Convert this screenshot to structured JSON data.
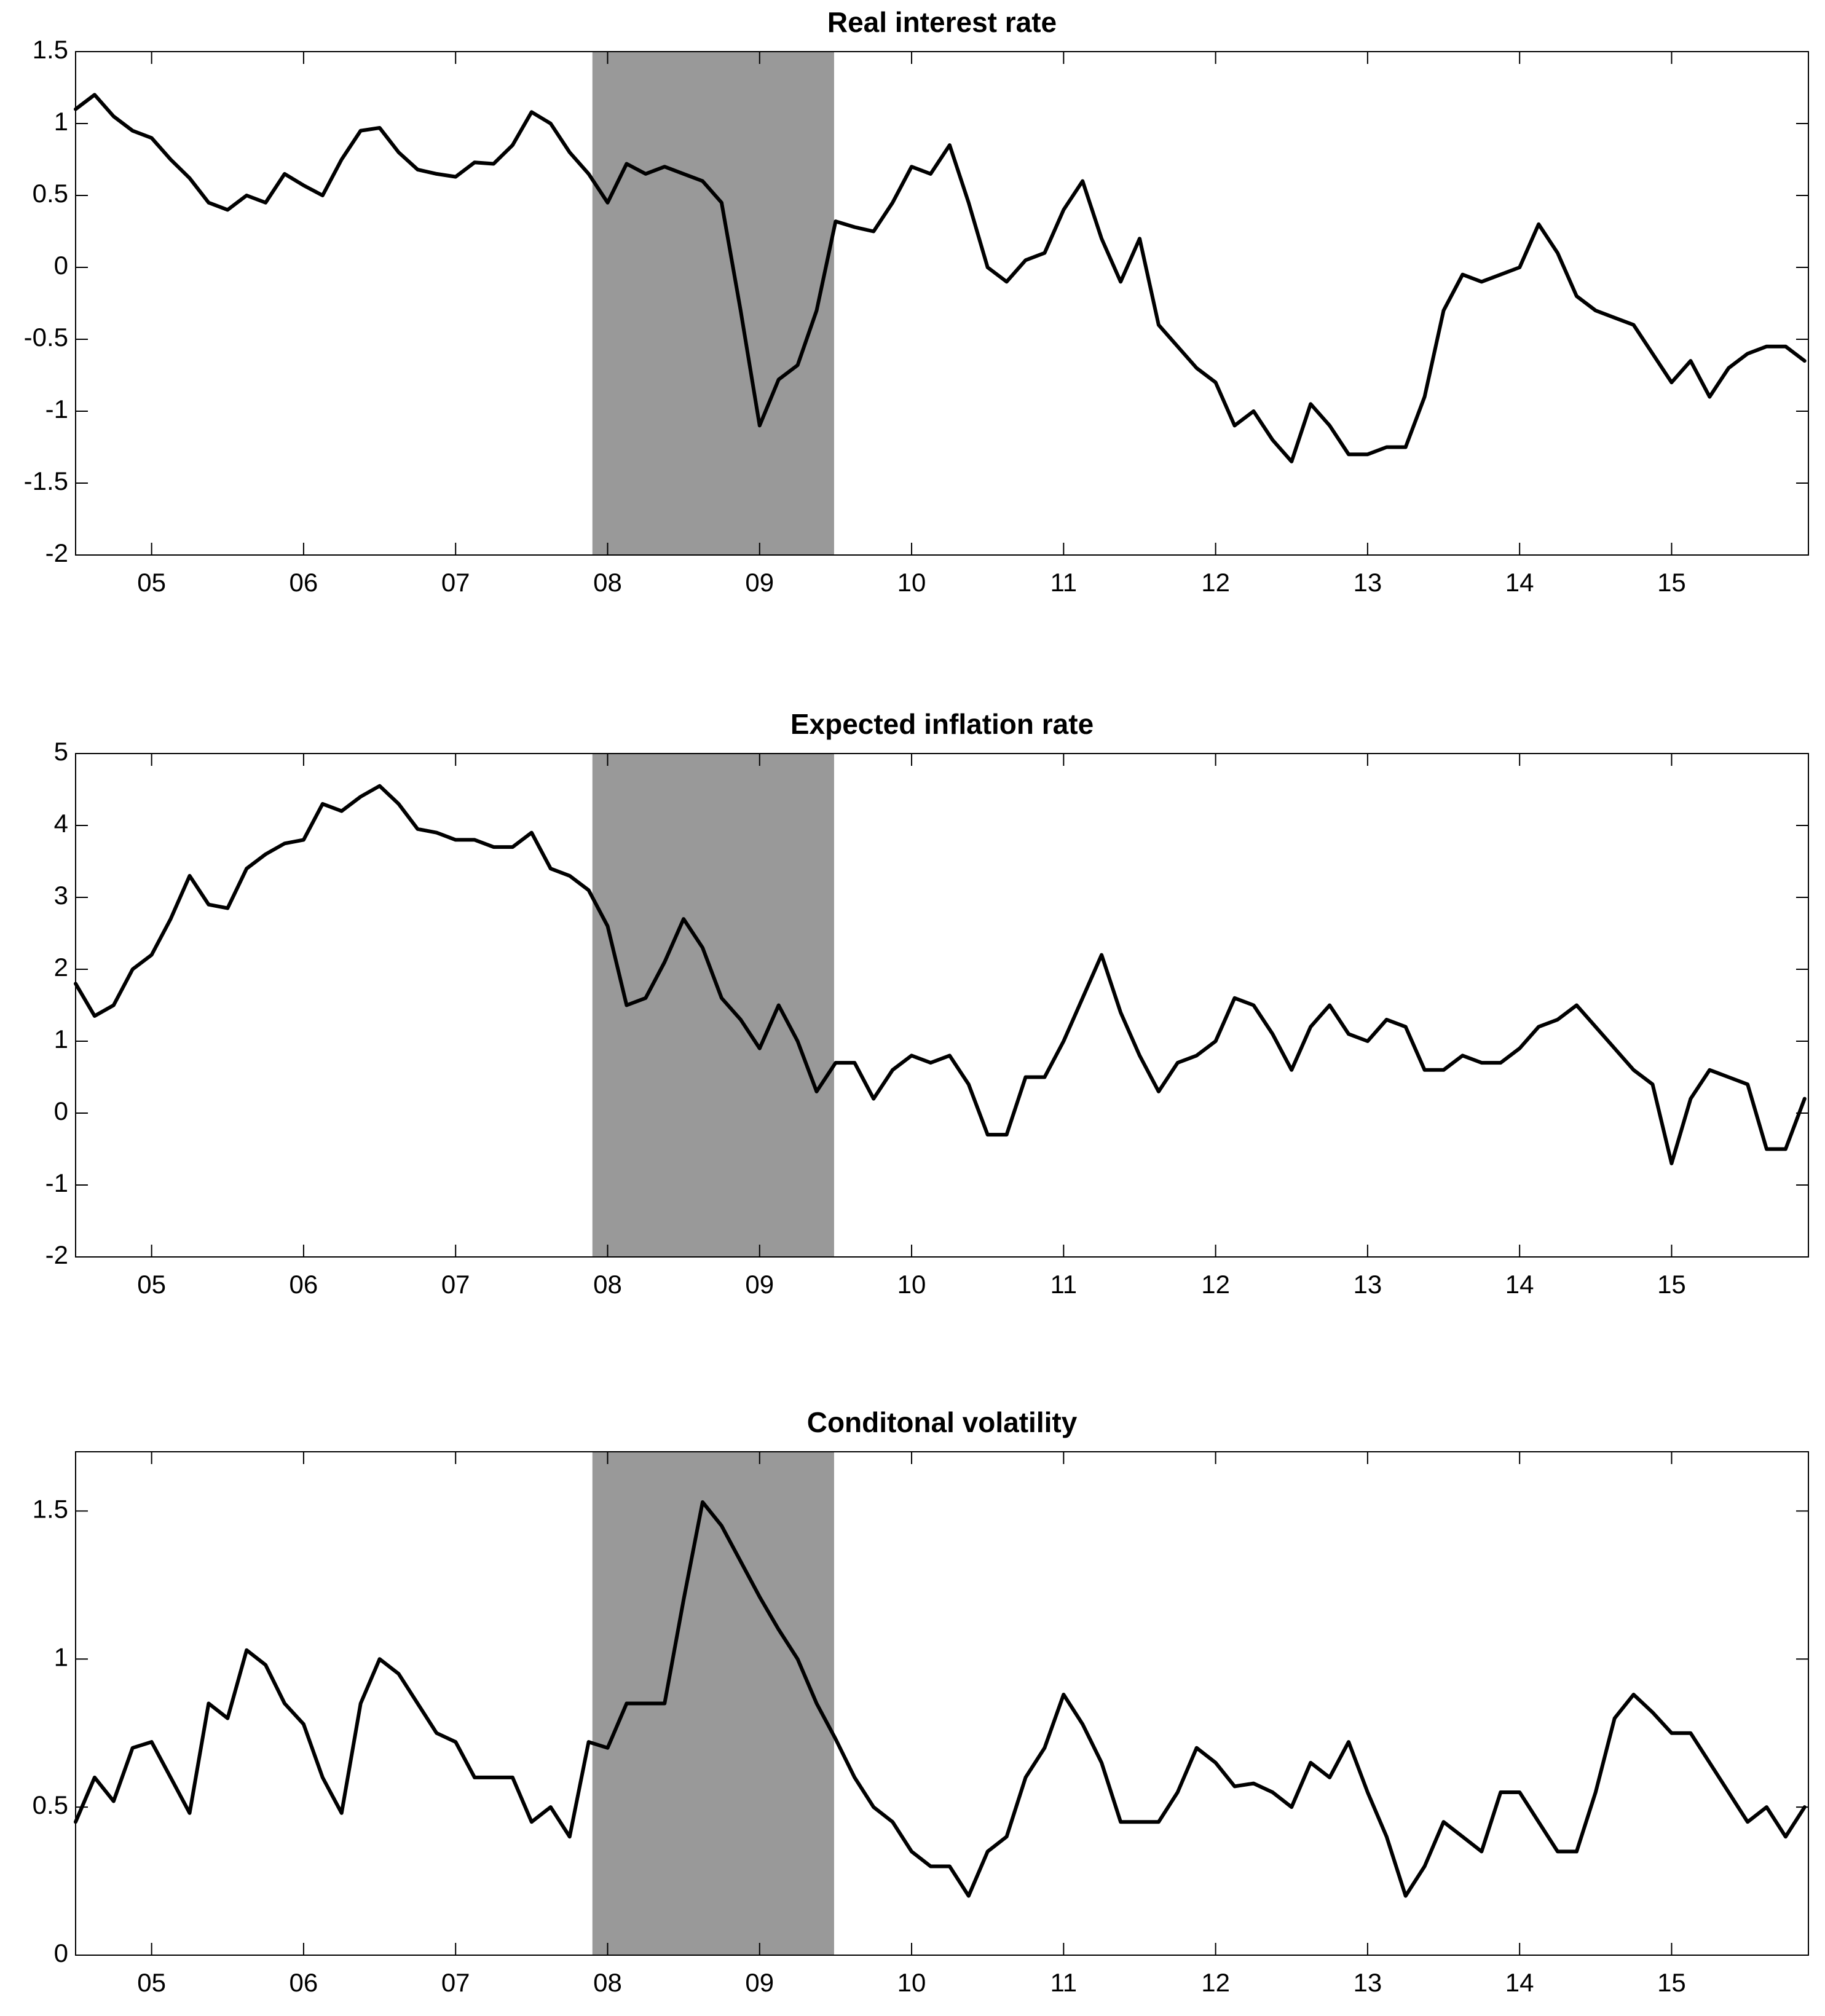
{
  "chart_data": [
    {
      "type": "line",
      "title": "Real interest rate",
      "color": "#000000",
      "shade_color": "#999999",
      "shaded_region": [
        2007.9,
        2009.49
      ],
      "xlim": [
        2004.5,
        2015.9
      ],
      "ylim": [
        -2,
        1.5
      ],
      "xticks": [
        {
          "value": 2005,
          "label": "05"
        },
        {
          "value": 2006,
          "label": "06"
        },
        {
          "value": 2007,
          "label": "07"
        },
        {
          "value": 2008,
          "label": "08"
        },
        {
          "value": 2009,
          "label": "09"
        },
        {
          "value": 2010,
          "label": "10"
        },
        {
          "value": 2011,
          "label": "11"
        },
        {
          "value": 2012,
          "label": "12"
        },
        {
          "value": 2013,
          "label": "13"
        },
        {
          "value": 2014,
          "label": "14"
        },
        {
          "value": 2015,
          "label": "15"
        }
      ],
      "yticks": [
        -2,
        -1.5,
        -1,
        -0.5,
        0,
        0.5,
        1,
        1.5
      ],
      "x": [
        2004.5,
        2004.625,
        2004.75,
        2004.875,
        2005,
        2005.125,
        2005.25,
        2005.375,
        2005.5,
        2005.625,
        2005.75,
        2005.875,
        2006,
        2006.125,
        2006.25,
        2006.375,
        2006.5,
        2006.625,
        2006.75,
        2006.875,
        2007,
        2007.125,
        2007.25,
        2007.375,
        2007.5,
        2007.625,
        2007.75,
        2007.875,
        2008,
        2008.125,
        2008.25,
        2008.375,
        2008.5,
        2008.625,
        2008.75,
        2008.875,
        2009,
        2009.125,
        2009.25,
        2009.375,
        2009.5,
        2009.625,
        2009.75,
        2009.875,
        2010,
        2010.125,
        2010.25,
        2010.375,
        2010.5,
        2010.625,
        2010.75,
        2010.875,
        2011,
        2011.125,
        2011.25,
        2011.375,
        2011.5,
        2011.625,
        2011.75,
        2011.875,
        2012,
        2012.125,
        2012.25,
        2012.375,
        2012.5,
        2012.625,
        2012.75,
        2012.875,
        2013,
        2013.125,
        2013.25,
        2013.375,
        2013.5,
        2013.625,
        2013.75,
        2013.875,
        2014,
        2014.125,
        2014.25,
        2014.375,
        2014.5,
        2014.625,
        2014.75,
        2014.875,
        2015,
        2015.125,
        2015.25,
        2015.375,
        2015.5,
        2015.625,
        2015.75,
        2015.875
      ],
      "values": [
        1.1,
        1.2,
        1.05,
        0.95,
        0.9,
        0.75,
        0.62,
        0.45,
        0.4,
        0.5,
        0.45,
        0.65,
        0.57,
        0.5,
        0.75,
        0.95,
        0.97,
        0.8,
        0.68,
        0.65,
        0.63,
        0.73,
        0.72,
        0.85,
        1.08,
        1.0,
        0.8,
        0.65,
        0.45,
        0.72,
        0.65,
        0.7,
        0.65,
        0.6,
        0.45,
        -0.3,
        -1.1,
        -0.78,
        -0.68,
        -0.3,
        0.32,
        0.28,
        0.25,
        0.45,
        0.7,
        0.65,
        0.85,
        0.45,
        0.0,
        -0.1,
        0.05,
        0.1,
        0.4,
        0.6,
        0.2,
        -0.1,
        0.2,
        -0.4,
        -0.55,
        -0.7,
        -0.8,
        -1.1,
        -1.0,
        -1.2,
        -1.35,
        -0.95,
        -1.1,
        -1.3,
        -1.3,
        -1.25,
        -1.25,
        -0.9,
        -0.3,
        -0.05,
        -0.1,
        -0.05,
        0.0,
        0.3,
        0.1,
        -0.2,
        -0.3,
        -0.35,
        -0.4,
        -0.6,
        -0.8,
        -0.65,
        -0.9,
        -0.7,
        -0.6,
        -0.55,
        -0.55,
        -0.65
      ]
    },
    {
      "type": "line",
      "title": "Expected inflation rate",
      "color": "#000000",
      "shade_color": "#999999",
      "shaded_region": [
        2007.9,
        2009.49
      ],
      "xlim": [
        2004.5,
        2015.9
      ],
      "ylim": [
        -2,
        5
      ],
      "xticks": [
        {
          "value": 2005,
          "label": "05"
        },
        {
          "value": 2006,
          "label": "06"
        },
        {
          "value": 2007,
          "label": "07"
        },
        {
          "value": 2008,
          "label": "08"
        },
        {
          "value": 2009,
          "label": "09"
        },
        {
          "value": 2010,
          "label": "10"
        },
        {
          "value": 2011,
          "label": "11"
        },
        {
          "value": 2012,
          "label": "12"
        },
        {
          "value": 2013,
          "label": "13"
        },
        {
          "value": 2014,
          "label": "14"
        },
        {
          "value": 2015,
          "label": "15"
        }
      ],
      "yticks": [
        -2,
        -1,
        0,
        1,
        2,
        3,
        4,
        5
      ],
      "x": [
        2004.5,
        2004.625,
        2004.75,
        2004.875,
        2005,
        2005.125,
        2005.25,
        2005.375,
        2005.5,
        2005.625,
        2005.75,
        2005.875,
        2006,
        2006.125,
        2006.25,
        2006.375,
        2006.5,
        2006.625,
        2006.75,
        2006.875,
        2007,
        2007.125,
        2007.25,
        2007.375,
        2007.5,
        2007.625,
        2007.75,
        2007.875,
        2008,
        2008.125,
        2008.25,
        2008.375,
        2008.5,
        2008.625,
        2008.75,
        2008.875,
        2009,
        2009.125,
        2009.25,
        2009.375,
        2009.5,
        2009.625,
        2009.75,
        2009.875,
        2010,
        2010.125,
        2010.25,
        2010.375,
        2010.5,
        2010.625,
        2010.75,
        2010.875,
        2011,
        2011.125,
        2011.25,
        2011.375,
        2011.5,
        2011.625,
        2011.75,
        2011.875,
        2012,
        2012.125,
        2012.25,
        2012.375,
        2012.5,
        2012.625,
        2012.75,
        2012.875,
        2013,
        2013.125,
        2013.25,
        2013.375,
        2013.5,
        2013.625,
        2013.75,
        2013.875,
        2014,
        2014.125,
        2014.25,
        2014.375,
        2014.5,
        2014.625,
        2014.75,
        2014.875,
        2015,
        2015.125,
        2015.25,
        2015.375,
        2015.5,
        2015.625,
        2015.75,
        2015.875
      ],
      "values": [
        1.8,
        1.35,
        1.5,
        2.0,
        2.2,
        2.7,
        3.3,
        2.9,
        2.85,
        3.4,
        3.6,
        3.75,
        3.8,
        4.3,
        4.2,
        4.4,
        4.55,
        4.3,
        3.95,
        3.9,
        3.8,
        3.8,
        3.7,
        3.7,
        3.9,
        3.4,
        3.3,
        3.1,
        2.6,
        1.5,
        1.6,
        2.1,
        2.7,
        2.3,
        1.6,
        1.3,
        0.9,
        1.5,
        1.0,
        0.3,
        0.7,
        0.7,
        0.2,
        0.6,
        0.8,
        0.7,
        0.8,
        0.4,
        -0.3,
        -0.3,
        0.5,
        0.5,
        1.0,
        1.6,
        2.2,
        1.4,
        0.8,
        0.3,
        0.7,
        0.8,
        1.0,
        1.6,
        1.5,
        1.1,
        0.6,
        1.2,
        1.5,
        1.1,
        1.0,
        1.3,
        1.2,
        0.6,
        0.6,
        0.8,
        0.7,
        0.7,
        0.9,
        1.2,
        1.3,
        1.5,
        1.2,
        0.9,
        0.6,
        0.4,
        -0.7,
        0.2,
        0.6,
        0.5,
        0.4,
        -0.5,
        -0.5,
        0.2
      ]
    },
    {
      "type": "line",
      "title": "Conditonal volatility",
      "color": "#000000",
      "shade_color": "#999999",
      "shaded_region": [
        2007.9,
        2009.49
      ],
      "xlim": [
        2004.5,
        2015.9
      ],
      "ylim": [
        0,
        1.7
      ],
      "xticks": [
        {
          "value": 2005,
          "label": "05"
        },
        {
          "value": 2006,
          "label": "06"
        },
        {
          "value": 2007,
          "label": "07"
        },
        {
          "value": 2008,
          "label": "08"
        },
        {
          "value": 2009,
          "label": "09"
        },
        {
          "value": 2010,
          "label": "10"
        },
        {
          "value": 2011,
          "label": "11"
        },
        {
          "value": 2012,
          "label": "12"
        },
        {
          "value": 2013,
          "label": "13"
        },
        {
          "value": 2014,
          "label": "14"
        },
        {
          "value": 2015,
          "label": "15"
        }
      ],
      "yticks": [
        0,
        0.5,
        1,
        1.5
      ],
      "x": [
        2004.5,
        2004.625,
        2004.75,
        2004.875,
        2005,
        2005.125,
        2005.25,
        2005.375,
        2005.5,
        2005.625,
        2005.75,
        2005.875,
        2006,
        2006.125,
        2006.25,
        2006.375,
        2006.5,
        2006.625,
        2006.75,
        2006.875,
        2007,
        2007.125,
        2007.25,
        2007.375,
        2007.5,
        2007.625,
        2007.75,
        2007.875,
        2008,
        2008.125,
        2008.25,
        2008.375,
        2008.5,
        2008.625,
        2008.75,
        2008.875,
        2009,
        2009.125,
        2009.25,
        2009.375,
        2009.5,
        2009.625,
        2009.75,
        2009.875,
        2010,
        2010.125,
        2010.25,
        2010.375,
        2010.5,
        2010.625,
        2010.75,
        2010.875,
        2011,
        2011.125,
        2011.25,
        2011.375,
        2011.5,
        2011.625,
        2011.75,
        2011.875,
        2012,
        2012.125,
        2012.25,
        2012.375,
        2012.5,
        2012.625,
        2012.75,
        2012.875,
        2013,
        2013.125,
        2013.25,
        2013.375,
        2013.5,
        2013.625,
        2013.75,
        2013.875,
        2014,
        2014.125,
        2014.25,
        2014.375,
        2014.5,
        2014.625,
        2014.75,
        2014.875,
        2015,
        2015.125,
        2015.25,
        2015.375,
        2015.5,
        2015.625,
        2015.75,
        2015.875
      ],
      "values": [
        0.45,
        0.6,
        0.52,
        0.7,
        0.72,
        0.6,
        0.48,
        0.85,
        0.8,
        1.03,
        0.98,
        0.85,
        0.78,
        0.6,
        0.48,
        0.85,
        1.0,
        0.95,
        0.85,
        0.75,
        0.72,
        0.6,
        0.6,
        0.6,
        0.45,
        0.5,
        0.4,
        0.72,
        0.7,
        0.85,
        0.85,
        0.85,
        1.2,
        1.53,
        1.45,
        1.33,
        1.21,
        1.1,
        1.0,
        0.85,
        0.73,
        0.6,
        0.5,
        0.45,
        0.35,
        0.3,
        0.3,
        0.2,
        0.35,
        0.4,
        0.6,
        0.7,
        0.88,
        0.78,
        0.65,
        0.45,
        0.45,
        0.45,
        0.55,
        0.7,
        0.65,
        0.57,
        0.58,
        0.55,
        0.5,
        0.65,
        0.6,
        0.72,
        0.55,
        0.4,
        0.2,
        0.3,
        0.45,
        0.4,
        0.35,
        0.55,
        0.55,
        0.45,
        0.35,
        0.35,
        0.55,
        0.8,
        0.88,
        0.82,
        0.75,
        0.75,
        0.65,
        0.55,
        0.45,
        0.5,
        0.4,
        0.5
      ]
    }
  ]
}
